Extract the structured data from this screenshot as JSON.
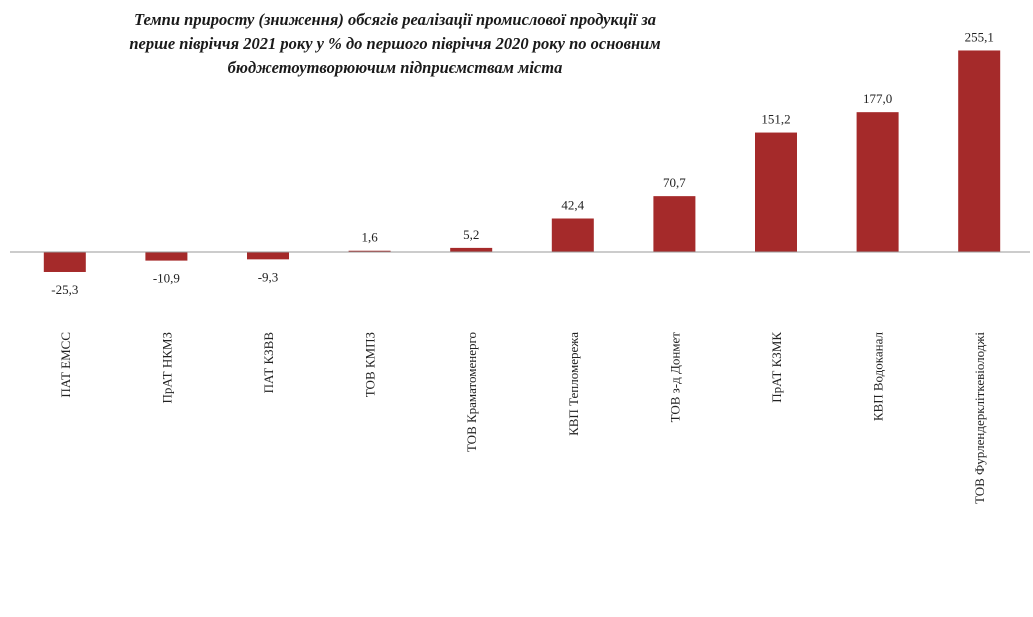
{
  "chart_data": {
    "type": "bar",
    "title_lines": [
      "Темпи приросту (зниження) обсягів реалізації промислової продукції за",
      "перше півріччя 2021 року у % до першого півріччя 2020 року по основним",
      "бюджетоутворюючим підприємствам міста"
    ],
    "categories": [
      "ПАТ ЕМСС",
      "ПрАТ НКМЗ",
      "ПАТ КЗВВ",
      "ТОВ КМПЗ",
      "ТОВ Краматоменерго",
      "КВП Тепломережа",
      "ТОВ з-д Донмет",
      "ПрАТ КЗМК",
      "КВП Водоканал",
      "ТОВ Фурлендеркліткевіолоджі"
    ],
    "values": [
      -25.3,
      -10.9,
      -9.3,
      1.6,
      5.2,
      42.4,
      70.7,
      151.2,
      177.0,
      255.1
    ],
    "value_labels": [
      "-25,3",
      "-10,9",
      "-9,3",
      "1,6",
      "5,2",
      "42,4",
      "70,7",
      "151,2",
      "177,0",
      "255,1"
    ],
    "bar_color": "#a52a2a",
    "axis_color": "#9a9a9a",
    "ylim": [
      -30,
      260
    ],
    "grid": false,
    "legend": "none"
  }
}
